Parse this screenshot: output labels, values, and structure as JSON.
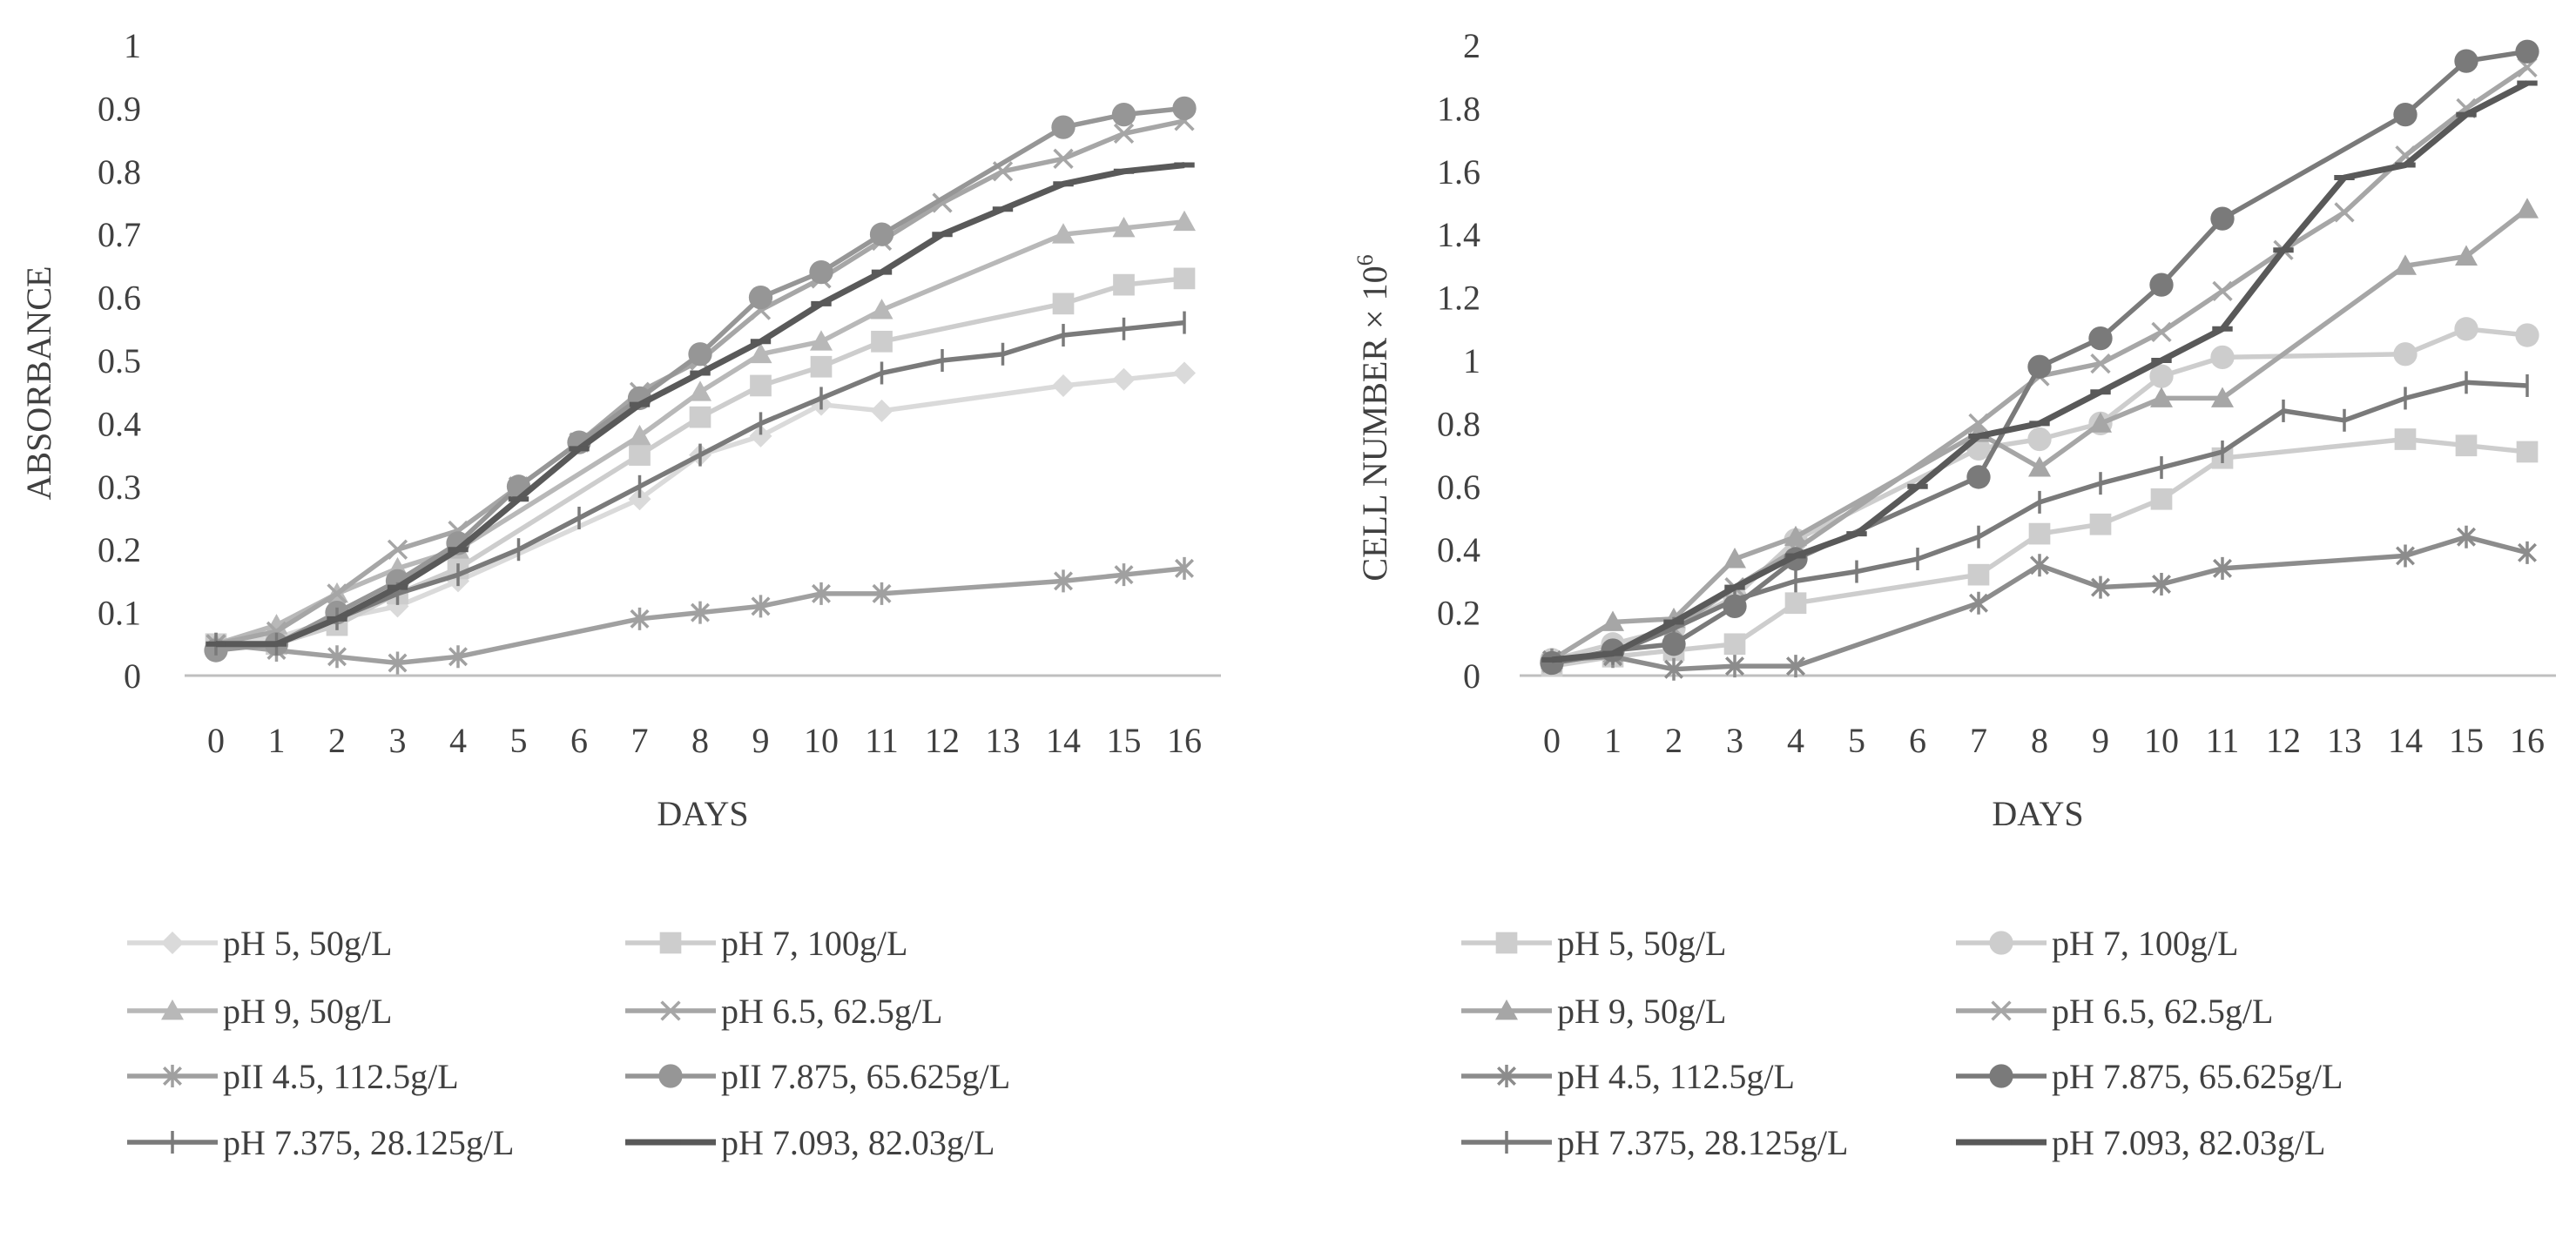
{
  "chart_data": [
    {
      "type": "line",
      "title": "",
      "xlabel": "DAYS",
      "ylabel": "ABSORBANCE",
      "ylim": [
        0,
        1
      ],
      "yticks": [
        "0",
        "0.1",
        "0.2",
        "0.3",
        "0.4",
        "0.5",
        "0.6",
        "0.7",
        "0.8",
        "0.9",
        "1"
      ],
      "xticks": [
        "0",
        "1",
        "2",
        "3",
        "4",
        "5",
        "6",
        "7",
        "8",
        "9",
        "10",
        "11",
        "12",
        "13",
        "14",
        "15",
        "16"
      ],
      "grid": false,
      "legend_position": "bottom",
      "series": [
        {
          "name": "pH 5, 50g/L",
          "marker": "diamond",
          "color": "#dadada",
          "x": [
            0,
            1,
            2,
            3,
            4,
            7,
            8,
            9,
            10,
            11,
            14,
            15,
            16
          ],
          "values": [
            0.05,
            0.06,
            0.09,
            0.11,
            0.15,
            0.28,
            0.35,
            0.38,
            0.43,
            0.42,
            0.46,
            0.47,
            0.48
          ]
        },
        {
          "name": "pH 7, 100g/L",
          "marker": "square",
          "color": "#cdcdcd",
          "x": [
            0,
            1,
            2,
            3,
            4,
            7,
            8,
            9,
            10,
            11,
            14,
            15,
            16
          ],
          "values": [
            0.05,
            0.05,
            0.08,
            0.13,
            0.17,
            0.35,
            0.41,
            0.46,
            0.49,
            0.53,
            0.59,
            0.62,
            0.63
          ]
        },
        {
          "name": "pH 9, 50g/L",
          "marker": "triangle",
          "color": "#b8b8b8",
          "x": [
            0,
            1,
            2,
            3,
            4,
            7,
            8,
            9,
            10,
            11,
            14,
            15,
            16
          ],
          "values": [
            0.05,
            0.08,
            0.13,
            0.17,
            0.2,
            0.38,
            0.45,
            0.51,
            0.53,
            0.58,
            0.7,
            0.71,
            0.72
          ]
        },
        {
          "name": "pH 6.5, 62.5g/L",
          "marker": "x",
          "color": "#a6a6a6",
          "x": [
            0,
            1,
            2,
            3,
            4,
            5,
            6,
            7,
            8,
            9,
            10,
            11,
            12,
            13,
            14,
            15,
            16
          ],
          "values": [
            0.05,
            0.07,
            0.13,
            0.2,
            0.23,
            0.3,
            0.37,
            0.45,
            0.5,
            0.58,
            0.63,
            0.69,
            0.75,
            0.8,
            0.82,
            0.86,
            0.88
          ]
        },
        {
          "name": "pII 4.5, 112.5g/L",
          "marker": "asterisk",
          "color": "#a0a0a0",
          "x": [
            0,
            1,
            2,
            3,
            4,
            7,
            8,
            9,
            10,
            11,
            14,
            15,
            16
          ],
          "values": [
            0.05,
            0.04,
            0.03,
            0.02,
            0.03,
            0.09,
            0.1,
            0.11,
            0.13,
            0.13,
            0.15,
            0.16,
            0.17
          ]
        },
        {
          "name": "pII 7.875, 65.625g/L",
          "marker": "circle",
          "color": "#969696",
          "x": [
            0,
            1,
            2,
            3,
            4,
            5,
            6,
            7,
            8,
            9,
            10,
            11,
            14,
            15,
            16
          ],
          "values": [
            0.04,
            0.05,
            0.1,
            0.15,
            0.21,
            0.3,
            0.37,
            0.44,
            0.51,
            0.6,
            0.64,
            0.7,
            0.87,
            0.89,
            0.9
          ]
        },
        {
          "name": "pH 7.375, 28.125g/L",
          "marker": "plus",
          "color": "#7a7a7a",
          "x": [
            0,
            1,
            2,
            3,
            4,
            5,
            6,
            7,
            8,
            9,
            10,
            11,
            12,
            13,
            14,
            15,
            16
          ],
          "values": [
            0.05,
            0.05,
            0.09,
            0.13,
            0.16,
            0.2,
            0.25,
            0.3,
            0.35,
            0.4,
            0.44,
            0.48,
            0.5,
            0.51,
            0.54,
            0.55,
            0.56
          ]
        },
        {
          "name": "pH 7.093, 82.03g/L",
          "marker": "dash",
          "color": "#595959",
          "x": [
            0,
            1,
            2,
            3,
            4,
            5,
            6,
            7,
            8,
            9,
            10,
            11,
            12,
            13,
            14,
            15,
            16
          ],
          "values": [
            0.05,
            0.05,
            0.09,
            0.14,
            0.2,
            0.28,
            0.36,
            0.43,
            0.48,
            0.53,
            0.59,
            0.64,
            0.7,
            0.74,
            0.78,
            0.8,
            0.81
          ]
        }
      ]
    },
    {
      "type": "line",
      "title": "",
      "xlabel": "DAYS",
      "ylabel": "CELL NUMBER × 10",
      "ylabel_exponent": "6",
      "ylim": [
        0,
        2
      ],
      "yticks": [
        "0",
        "0.2",
        "0.4",
        "0.6",
        "0.8",
        "1",
        "1.2",
        "1.4",
        "1.6",
        "1.8",
        "2"
      ],
      "xticks": [
        "0",
        "1",
        "2",
        "3",
        "4",
        "5",
        "6",
        "7",
        "8",
        "9",
        "10",
        "11",
        "12",
        "13",
        "14",
        "15",
        "16"
      ],
      "grid": false,
      "legend_position": "bottom",
      "series": [
        {
          "name": "pH 5, 50g/L",
          "marker": "square",
          "color": "#cdcdcd",
          "x": [
            0,
            1,
            2,
            3,
            4,
            7,
            8,
            9,
            10,
            11,
            14,
            15,
            16
          ],
          "values": [
            0.03,
            0.06,
            0.08,
            0.1,
            0.23,
            0.32,
            0.45,
            0.48,
            0.56,
            0.69,
            0.75,
            0.73,
            0.71
          ]
        },
        {
          "name": "pH 7, 100g/L",
          "marker": "circle",
          "color": "#cdcdcd",
          "x": [
            0,
            1,
            2,
            3,
            4,
            7,
            8,
            9,
            10,
            11,
            14,
            15,
            16
          ],
          "values": [
            0.05,
            0.1,
            0.15,
            0.25,
            0.43,
            0.72,
            0.75,
            0.8,
            0.95,
            1.01,
            1.02,
            1.1,
            1.08
          ]
        },
        {
          "name": "pH 9, 50g/L",
          "marker": "triangle",
          "color": "#a6a6a6",
          "x": [
            0,
            1,
            2,
            3,
            4,
            7,
            8,
            9,
            10,
            11,
            14,
            15,
            16
          ],
          "values": [
            0.05,
            0.17,
            0.18,
            0.37,
            0.44,
            0.77,
            0.66,
            0.8,
            0.88,
            0.88,
            1.3,
            1.33,
            1.48
          ]
        },
        {
          "name": "pH 6.5, 62.5g/L",
          "marker": "x",
          "color": "#a6a6a6",
          "x": [
            0,
            1,
            2,
            3,
            4,
            7,
            8,
            9,
            10,
            11,
            12,
            13,
            14,
            15,
            16
          ],
          "values": [
            0.04,
            0.07,
            0.15,
            0.28,
            0.4,
            0.8,
            0.95,
            0.99,
            1.09,
            1.22,
            1.35,
            1.47,
            1.65,
            1.8,
            1.93
          ]
        },
        {
          "name": "pH 4.5, 112.5g/L",
          "marker": "asterisk",
          "color": "#8c8c8c",
          "x": [
            0,
            1,
            2,
            3,
            4,
            7,
            8,
            9,
            10,
            11,
            14,
            15,
            16
          ],
          "values": [
            0.05,
            0.06,
            0.02,
            0.03,
            0.03,
            0.23,
            0.35,
            0.28,
            0.29,
            0.34,
            0.38,
            0.44,
            0.39
          ]
        },
        {
          "name": "pH 7.875, 65.625g/L",
          "marker": "circle",
          "color": "#7a7a7a",
          "x": [
            0,
            1,
            2,
            3,
            4,
            7,
            8,
            9,
            10,
            11,
            14,
            15,
            16
          ],
          "values": [
            0.04,
            0.08,
            0.1,
            0.22,
            0.37,
            0.63,
            0.98,
            1.07,
            1.24,
            1.45,
            1.78,
            1.95,
            1.98
          ]
        },
        {
          "name": "pH 7.375, 28.125g/L",
          "marker": "plus",
          "color": "#7a7a7a",
          "x": [
            0,
            1,
            2,
            3,
            4,
            5,
            6,
            7,
            8,
            9,
            10,
            11,
            12,
            13,
            14,
            15,
            16
          ],
          "values": [
            0.04,
            0.07,
            0.15,
            0.24,
            0.3,
            0.33,
            0.37,
            0.44,
            0.55,
            0.61,
            0.66,
            0.71,
            0.84,
            0.81,
            0.88,
            0.93,
            0.92
          ]
        },
        {
          "name": "pH 7.093, 82.03g/L",
          "marker": "dash",
          "color": "#595959",
          "x": [
            0,
            1,
            2,
            3,
            4,
            5,
            6,
            7,
            8,
            9,
            10,
            11,
            12,
            13,
            14,
            15,
            16
          ],
          "values": [
            0.05,
            0.07,
            0.17,
            0.28,
            0.38,
            0.45,
            0.6,
            0.76,
            0.8,
            0.9,
            1.0,
            1.1,
            1.35,
            1.58,
            1.62,
            1.78,
            1.88
          ]
        }
      ]
    }
  ]
}
